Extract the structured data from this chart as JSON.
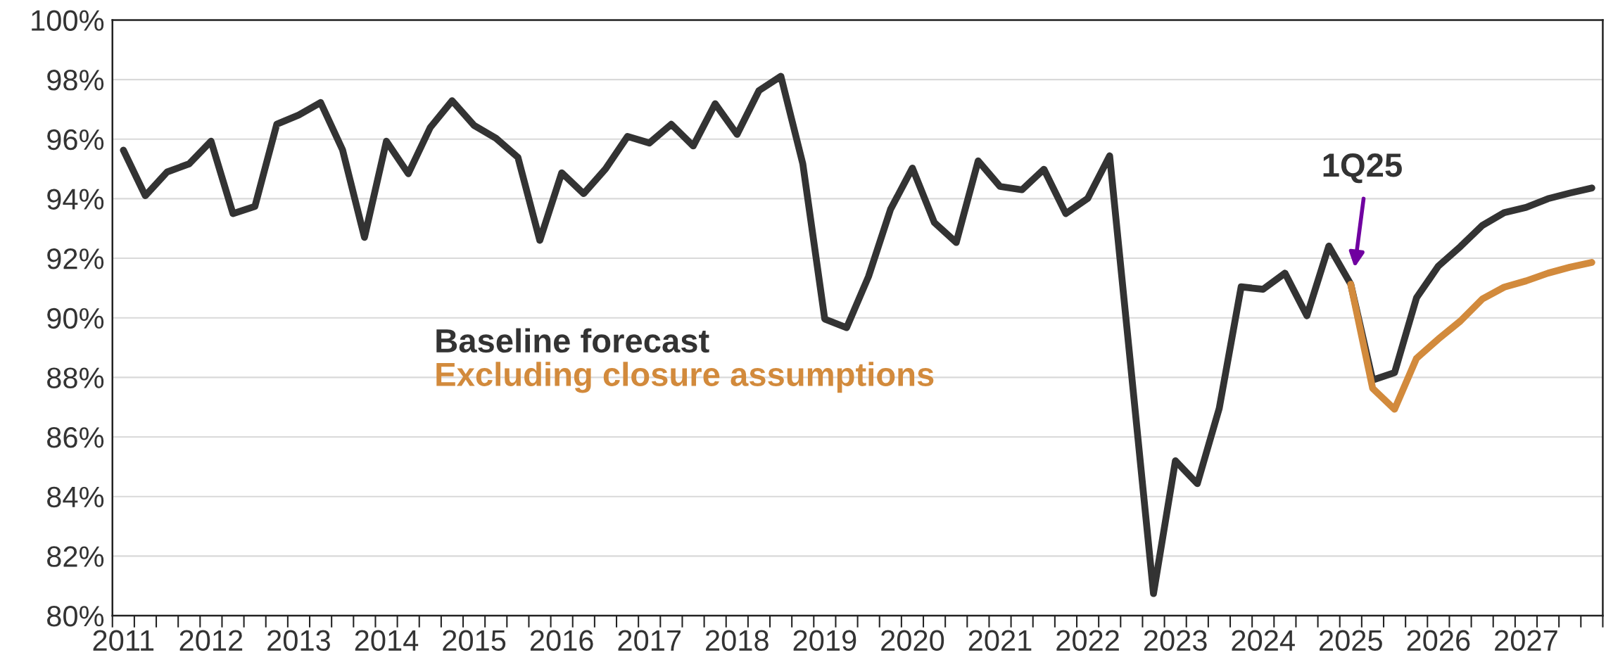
{
  "chart_data": {
    "type": "line",
    "categories": [
      "2011",
      null,
      null,
      null,
      "2012",
      null,
      null,
      null,
      "2013",
      null,
      null,
      null,
      "2014",
      null,
      null,
      null,
      "2015",
      null,
      null,
      null,
      "2016",
      null,
      null,
      null,
      "2017",
      null,
      null,
      null,
      "2018",
      null,
      null,
      null,
      "2019",
      null,
      null,
      null,
      "2020",
      null,
      null,
      null,
      "2021",
      null,
      null,
      null,
      "2022",
      null,
      null,
      null,
      "2023",
      null,
      null,
      null,
      "2024",
      null,
      null,
      null,
      "2025",
      null,
      null,
      null,
      "2026",
      null,
      null,
      null,
      "2027",
      null,
      null,
      null
    ],
    "series": [
      {
        "name": "Baseline forecast",
        "color": "#333333",
        "values": [
          95.63,
          94.1,
          94.9,
          95.17,
          95.93,
          93.5,
          93.74,
          96.5,
          96.81,
          97.23,
          95.64,
          92.7,
          95.93,
          94.84,
          96.39,
          97.29,
          96.46,
          96.03,
          95.39,
          92.6,
          94.87,
          94.17,
          95.0,
          96.09,
          95.87,
          96.5,
          95.77,
          97.19,
          96.16,
          97.63,
          98.11,
          95.17,
          89.96,
          89.67,
          91.39,
          93.64,
          95.03,
          93.2,
          92.53,
          95.27,
          94.41,
          94.3,
          94.99,
          93.5,
          94.01,
          95.44,
          88.1,
          80.74,
          85.2,
          84.43,
          86.96,
          91.04,
          90.96,
          91.5,
          90.07,
          92.41,
          91.13,
          87.91,
          88.16,
          90.67,
          91.74,
          92.39,
          93.1,
          93.53,
          93.71,
          94.0,
          94.19,
          94.36
        ]
      },
      {
        "name": "Excluding closure assumptions",
        "color": "#d28a3c",
        "values": [
          null,
          null,
          null,
          null,
          null,
          null,
          null,
          null,
          null,
          null,
          null,
          null,
          null,
          null,
          null,
          null,
          null,
          null,
          null,
          null,
          null,
          null,
          null,
          null,
          null,
          null,
          null,
          null,
          null,
          null,
          null,
          null,
          null,
          null,
          null,
          null,
          null,
          null,
          null,
          null,
          null,
          null,
          null,
          null,
          null,
          null,
          null,
          null,
          null,
          null,
          null,
          null,
          null,
          null,
          null,
          null,
          91.13,
          87.63,
          86.93,
          88.64,
          89.29,
          89.89,
          90.63,
          91.03,
          91.24,
          91.5,
          91.7,
          91.86
        ]
      }
    ],
    "ylim": [
      80,
      100
    ],
    "yticks": [
      {
        "value": 80,
        "label": "80%"
      },
      {
        "value": 82,
        "label": "82%"
      },
      {
        "value": 84,
        "label": "84%"
      },
      {
        "value": 86,
        "label": "86%"
      },
      {
        "value": 88,
        "label": "88%"
      },
      {
        "value": 90,
        "label": "90%"
      },
      {
        "value": 92,
        "label": "92%"
      },
      {
        "value": 94,
        "label": "94%"
      },
      {
        "value": 96,
        "label": "96%"
      },
      {
        "value": 98,
        "label": "98%"
      },
      {
        "value": 100,
        "label": "100%"
      }
    ],
    "grid": "y",
    "legend": false,
    "marker": "none",
    "line_style": "solid",
    "annotations": [
      "1Q25"
    ]
  }
}
